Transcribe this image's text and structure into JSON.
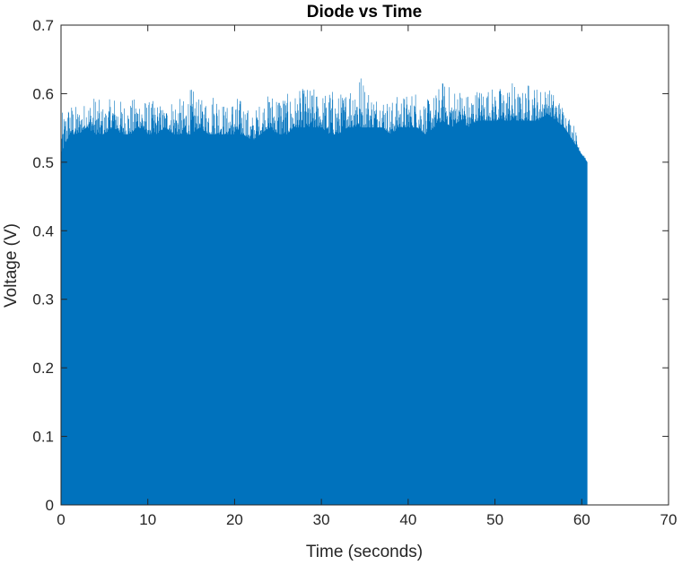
{
  "chart_data": {
    "type": "area",
    "title": "Diode vs Time",
    "xlabel": "Time (seconds)",
    "ylabel": "Voltage (V)",
    "xlim": [
      0,
      70
    ],
    "ylim": [
      0,
      0.7
    ],
    "x_ticks": [
      "0",
      "10",
      "20",
      "30",
      "40",
      "50",
      "60",
      "70"
    ],
    "y_ticks": [
      "0",
      "0.1",
      "0.2",
      "0.3",
      "0.4",
      "0.5",
      "0.6",
      "0.7"
    ],
    "grid": false,
    "box": true,
    "series": [
      {
        "color": "#0072bd",
        "x": [
          0,
          1,
          2,
          3,
          4,
          5,
          6,
          7,
          8,
          9,
          10,
          11,
          12,
          13,
          14,
          15,
          16,
          17,
          18,
          19,
          20,
          21,
          22,
          23,
          24,
          25,
          26,
          27,
          28,
          29,
          30,
          31,
          32,
          33,
          34,
          35,
          36,
          37,
          38,
          39,
          40,
          41,
          42,
          43,
          44,
          45,
          46,
          47,
          48,
          49,
          50,
          51,
          52,
          53,
          54,
          55,
          56,
          57,
          58,
          59,
          60,
          60.6
        ],
        "baseline": [
          0.51,
          0.54,
          0.54,
          0.55,
          0.54,
          0.54,
          0.55,
          0.54,
          0.54,
          0.55,
          0.54,
          0.54,
          0.55,
          0.54,
          0.54,
          0.54,
          0.55,
          0.54,
          0.54,
          0.54,
          0.54,
          0.54,
          0.53,
          0.54,
          0.55,
          0.54,
          0.54,
          0.55,
          0.55,
          0.55,
          0.55,
          0.54,
          0.54,
          0.55,
          0.55,
          0.55,
          0.55,
          0.55,
          0.54,
          0.55,
          0.55,
          0.55,
          0.54,
          0.55,
          0.56,
          0.55,
          0.56,
          0.55,
          0.56,
          0.56,
          0.56,
          0.56,
          0.56,
          0.56,
          0.56,
          0.56,
          0.57,
          0.56,
          0.55,
          0.53,
          0.51,
          0.5
        ],
        "peaks": [
          0.57,
          0.59,
          0.58,
          0.59,
          0.6,
          0.58,
          0.6,
          0.59,
          0.59,
          0.6,
          0.59,
          0.59,
          0.58,
          0.6,
          0.59,
          0.61,
          0.59,
          0.6,
          0.61,
          0.58,
          0.6,
          0.59,
          0.57,
          0.59,
          0.6,
          0.61,
          0.6,
          0.6,
          0.61,
          0.61,
          0.6,
          0.61,
          0.6,
          0.61,
          0.65,
          0.62,
          0.6,
          0.6,
          0.59,
          0.6,
          0.6,
          0.61,
          0.59,
          0.6,
          0.62,
          0.61,
          0.61,
          0.6,
          0.61,
          0.61,
          0.61,
          0.61,
          0.62,
          0.6,
          0.62,
          0.61,
          0.61,
          0.6,
          0.58,
          0.56,
          0.52,
          0.5
        ]
      }
    ]
  }
}
